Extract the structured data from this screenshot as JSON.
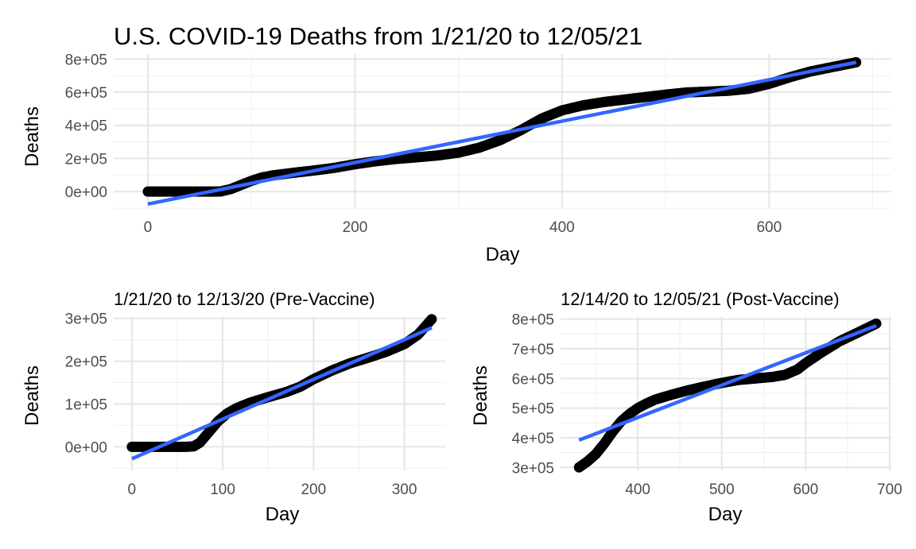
{
  "figure": {
    "title": "U.S. COVID-19 Deaths from 1/21/20 to 12/05/21"
  },
  "colors": {
    "points": "#000000",
    "fit": "#3366ff"
  },
  "chart_data": [
    {
      "id": "top",
      "type": "scatter",
      "title": "",
      "xlabel": "Day",
      "ylabel": "Deaths",
      "xlim": [
        -33,
        718
      ],
      "ylim": [
        -100000,
        830000
      ],
      "xticks": [
        0,
        200,
        400,
        600
      ],
      "xtick_labels": [
        "0",
        "200",
        "400",
        "600"
      ],
      "xminor": [
        100,
        300,
        500,
        700
      ],
      "yticks": [
        0,
        200000,
        400000,
        600000,
        800000
      ],
      "ytick_labels": [
        "0e+00",
        "2e+05",
        "4e+05",
        "6e+05",
        "8e+05"
      ],
      "yminor": [
        -100000,
        100000,
        300000,
        500000,
        700000
      ],
      "points": [
        [
          0,
          0
        ],
        [
          30,
          0
        ],
        [
          60,
          0
        ],
        [
          70,
          500
        ],
        [
          80,
          15000
        ],
        [
          90,
          40000
        ],
        [
          100,
          65000
        ],
        [
          110,
          85000
        ],
        [
          120,
          97000
        ],
        [
          140,
          113000
        ],
        [
          160,
          127000
        ],
        [
          180,
          143000
        ],
        [
          200,
          165000
        ],
        [
          220,
          183000
        ],
        [
          240,
          197000
        ],
        [
          260,
          207000
        ],
        [
          280,
          218000
        ],
        [
          300,
          235000
        ],
        [
          320,
          265000
        ],
        [
          340,
          310000
        ],
        [
          360,
          370000
        ],
        [
          380,
          440000
        ],
        [
          400,
          490000
        ],
        [
          420,
          520000
        ],
        [
          440,
          540000
        ],
        [
          460,
          555000
        ],
        [
          480,
          570000
        ],
        [
          500,
          585000
        ],
        [
          520,
          598000
        ],
        [
          540,
          603000
        ],
        [
          560,
          608000
        ],
        [
          580,
          620000
        ],
        [
          600,
          650000
        ],
        [
          620,
          690000
        ],
        [
          640,
          725000
        ],
        [
          660,
          750000
        ],
        [
          684,
          780000
        ]
      ],
      "fit": [
        [
          0,
          -75000
        ],
        [
          684,
          780000
        ]
      ]
    },
    {
      "id": "pre",
      "type": "scatter",
      "title": "1/21/20 to 12/13/20 (Pre-Vaccine)",
      "xlabel": "Day",
      "ylabel": "Deaths",
      "xlim": [
        -20,
        345
      ],
      "ylim": [
        -55000,
        305000
      ],
      "xticks": [
        0,
        100,
        200,
        300
      ],
      "xtick_labels": [
        "0",
        "100",
        "200",
        "300"
      ],
      "xminor": [
        50,
        150,
        250
      ],
      "yticks": [
        0,
        100000,
        200000,
        300000
      ],
      "ytick_labels": [
        "0e+00",
        "1e+05",
        "2e+05",
        "3e+05"
      ],
      "yminor": [
        -50000,
        50000,
        150000,
        250000
      ],
      "points": [
        [
          0,
          0
        ],
        [
          20,
          0
        ],
        [
          40,
          0
        ],
        [
          60,
          0
        ],
        [
          68,
          1000
        ],
        [
          75,
          10000
        ],
        [
          85,
          35000
        ],
        [
          95,
          60000
        ],
        [
          105,
          78000
        ],
        [
          115,
          90000
        ],
        [
          130,
          103000
        ],
        [
          150,
          116000
        ],
        [
          170,
          128000
        ],
        [
          185,
          140000
        ],
        [
          200,
          158000
        ],
        [
          220,
          178000
        ],
        [
          240,
          195000
        ],
        [
          260,
          208000
        ],
        [
          280,
          222000
        ],
        [
          300,
          240000
        ],
        [
          315,
          262000
        ],
        [
          330,
          298000
        ]
      ],
      "fit": [
        [
          0,
          -28000
        ],
        [
          330,
          278000
        ]
      ]
    },
    {
      "id": "post",
      "type": "scatter",
      "title": "12/14/20 to 12/05/21 (Post-Vaccine)",
      "xlabel": "Day",
      "ylabel": "Deaths",
      "xlim": [
        308,
        702
      ],
      "ylim": [
        290000,
        810000
      ],
      "xticks": [
        400,
        500,
        600,
        700
      ],
      "xtick_labels": [
        "400",
        "500",
        "600",
        "700"
      ],
      "xminor": [
        350,
        450,
        550,
        650
      ],
      "yticks": [
        300000,
        400000,
        500000,
        600000,
        700000,
        800000
      ],
      "ytick_labels": [
        "3e+05",
        "4e+05",
        "5e+05",
        "6e+05",
        "7e+05",
        "8e+05"
      ],
      "yminor": [
        350000,
        450000,
        550000,
        650000,
        750000
      ],
      "points": [
        [
          330,
          300000
        ],
        [
          340,
          320000
        ],
        [
          350,
          345000
        ],
        [
          360,
          380000
        ],
        [
          370,
          420000
        ],
        [
          380,
          455000
        ],
        [
          390,
          480000
        ],
        [
          400,
          500000
        ],
        [
          410,
          515000
        ],
        [
          420,
          528000
        ],
        [
          440,
          545000
        ],
        [
          460,
          560000
        ],
        [
          480,
          573000
        ],
        [
          500,
          585000
        ],
        [
          520,
          595000
        ],
        [
          540,
          600000
        ],
        [
          560,
          605000
        ],
        [
          575,
          612000
        ],
        [
          590,
          630000
        ],
        [
          600,
          652000
        ],
        [
          620,
          690000
        ],
        [
          640,
          725000
        ],
        [
          660,
          752000
        ],
        [
          684,
          785000
        ]
      ],
      "fit": [
        [
          330,
          392000
        ],
        [
          684,
          778000
        ]
      ]
    }
  ]
}
